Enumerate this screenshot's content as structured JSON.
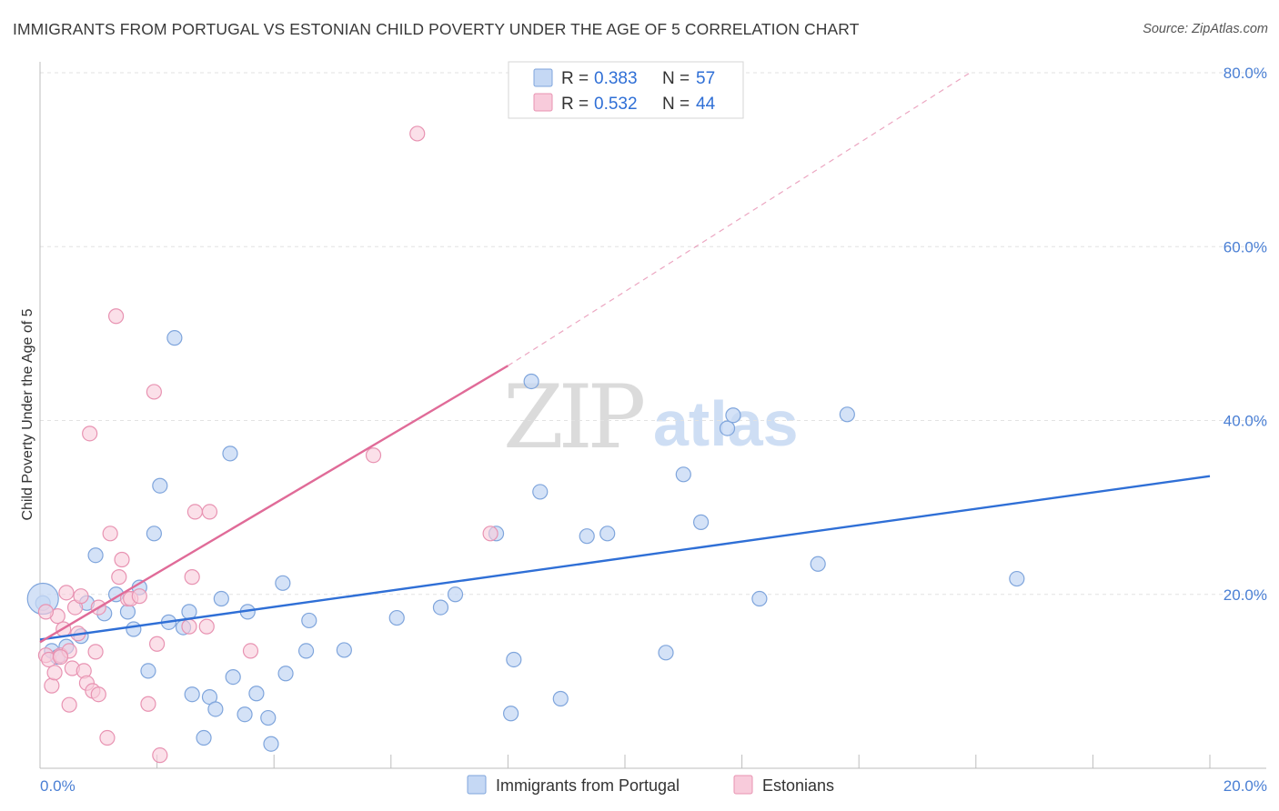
{
  "header": {
    "title": "IMMIGRANTS FROM PORTUGAL VS ESTONIAN CHILD POVERTY UNDER THE AGE OF 5 CORRELATION CHART",
    "source": "Source: ZipAtlas.com"
  },
  "watermark": {
    "zip": "ZIP",
    "atlas": "atlas"
  },
  "legend": {
    "rows": [
      {
        "r_label": "R = ",
        "r_value": "0.383",
        "n_label": "N = ",
        "n_value": "57"
      },
      {
        "r_label": "R = ",
        "r_value": "0.532",
        "n_label": "N = ",
        "n_value": "44"
      }
    ]
  },
  "bottom_legend": {
    "items": [
      {
        "label": "Immigrants from Portugal"
      },
      {
        "label": "Estonians"
      }
    ]
  },
  "colors": {
    "blue_fill": "#c5d8f4",
    "blue_stroke": "#7fa5dc",
    "blue_line": "#2f6fd6",
    "pink_fill": "#f8cbdb",
    "pink_stroke": "#e893b2",
    "pink_line": "#e06b98",
    "grid": "#e2e2e2",
    "tick_text": "#4a7fd4"
  },
  "chart_data": {
    "type": "scatter",
    "title": "IMMIGRANTS FROM PORTUGAL VS ESTONIAN CHILD POVERTY UNDER THE AGE OF 5 CORRELATION CHART",
    "xlabel": "",
    "ylabel": "Child Poverty Under the Age of 5",
    "xlim": [
      0,
      20
    ],
    "ylim": [
      0,
      80
    ],
    "x_tick_labels": [
      "0.0%",
      "20.0%"
    ],
    "y_tick_labels": [
      "20.0%",
      "40.0%",
      "60.0%",
      "80.0%"
    ],
    "y_ticks": [
      20,
      40,
      60,
      80
    ],
    "grid": true,
    "legend_position": "top-center",
    "series": [
      {
        "name": "Immigrants from Portugal",
        "R": 0.383,
        "N": 57,
        "trend": {
          "x": [
            0,
            20
          ],
          "y": [
            14.8,
            33.6
          ]
        },
        "points": [
          [
            0.05,
            19.0
          ],
          [
            0.2,
            13.5
          ],
          [
            0.3,
            12.8
          ],
          [
            0.45,
            14.0
          ],
          [
            0.7,
            15.2
          ],
          [
            0.8,
            19.0
          ],
          [
            0.95,
            24.5
          ],
          [
            1.1,
            17.8
          ],
          [
            1.3,
            20.0
          ],
          [
            1.5,
            18.0
          ],
          [
            1.6,
            16.0
          ],
          [
            1.7,
            20.8
          ],
          [
            1.85,
            11.2
          ],
          [
            1.95,
            27.0
          ],
          [
            2.05,
            32.5
          ],
          [
            2.2,
            16.8
          ],
          [
            2.3,
            49.5
          ],
          [
            2.45,
            16.2
          ],
          [
            2.55,
            18.0
          ],
          [
            2.6,
            8.5
          ],
          [
            2.8,
            3.5
          ],
          [
            2.9,
            8.2
          ],
          [
            3.0,
            6.8
          ],
          [
            3.1,
            19.5
          ],
          [
            3.25,
            36.2
          ],
          [
            3.3,
            10.5
          ],
          [
            3.5,
            6.2
          ],
          [
            3.55,
            18.0
          ],
          [
            3.7,
            8.6
          ],
          [
            3.9,
            5.8
          ],
          [
            3.95,
            2.8
          ],
          [
            4.15,
            21.3
          ],
          [
            4.2,
            10.9
          ],
          [
            4.55,
            13.5
          ],
          [
            4.6,
            17.0
          ],
          [
            5.2,
            13.6
          ],
          [
            6.1,
            17.3
          ],
          [
            6.85,
            18.5
          ],
          [
            7.1,
            20.0
          ],
          [
            7.8,
            27.0
          ],
          [
            8.05,
            6.3
          ],
          [
            8.1,
            12.5
          ],
          [
            8.4,
            44.5
          ],
          [
            8.55,
            31.8
          ],
          [
            8.9,
            8.0
          ],
          [
            9.35,
            26.7
          ],
          [
            9.7,
            27.0
          ],
          [
            10.7,
            13.3
          ],
          [
            11.0,
            33.8
          ],
          [
            11.3,
            28.3
          ],
          [
            11.75,
            39.1
          ],
          [
            11.85,
            40.6
          ],
          [
            12.3,
            19.5
          ],
          [
            13.3,
            23.5
          ],
          [
            13.8,
            40.7
          ],
          [
            16.7,
            21.8
          ],
          [
            0.05,
            19.5
          ]
        ]
      },
      {
        "name": "Estonians",
        "R": 0.532,
        "N": 44,
        "trend": {
          "x": [
            0,
            8.0
          ],
          "y": [
            14.5,
            46.3
          ]
        },
        "trend_dashed": {
          "x": [
            8.0,
            15.9
          ],
          "y": [
            46.3,
            80.0
          ]
        },
        "points": [
          [
            0.1,
            13.0
          ],
          [
            0.15,
            12.5
          ],
          [
            0.2,
            9.5
          ],
          [
            0.25,
            11.0
          ],
          [
            0.3,
            17.5
          ],
          [
            0.35,
            13.0
          ],
          [
            0.4,
            16.0
          ],
          [
            0.45,
            20.2
          ],
          [
            0.5,
            7.3
          ],
          [
            0.55,
            11.5
          ],
          [
            0.6,
            18.5
          ],
          [
            0.65,
            15.5
          ],
          [
            0.7,
            19.8
          ],
          [
            0.75,
            11.2
          ],
          [
            0.8,
            9.8
          ],
          [
            0.85,
            38.5
          ],
          [
            0.9,
            8.9
          ],
          [
            0.95,
            13.4
          ],
          [
            1.0,
            18.5
          ],
          [
            1.15,
            3.5
          ],
          [
            1.2,
            27.0
          ],
          [
            1.3,
            52.0
          ],
          [
            1.35,
            22.0
          ],
          [
            1.4,
            24.0
          ],
          [
            1.5,
            19.5
          ],
          [
            1.55,
            19.5
          ],
          [
            1.85,
            7.4
          ],
          [
            1.95,
            43.3
          ],
          [
            2.0,
            14.3
          ],
          [
            2.05,
            1.5
          ],
          [
            2.55,
            16.3
          ],
          [
            2.6,
            22.0
          ],
          [
            2.65,
            29.5
          ],
          [
            2.85,
            16.3
          ],
          [
            2.9,
            29.5
          ],
          [
            3.6,
            13.5
          ],
          [
            5.7,
            36.0
          ],
          [
            6.45,
            73.0
          ],
          [
            7.7,
            27.0
          ],
          [
            0.1,
            18.0
          ],
          [
            0.5,
            13.5
          ],
          [
            1.0,
            8.5
          ],
          [
            0.35,
            12.8
          ],
          [
            1.7,
            19.8
          ]
        ]
      }
    ]
  }
}
